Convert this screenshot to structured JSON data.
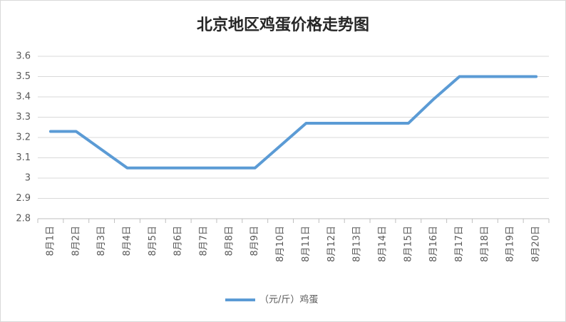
{
  "chart_data": {
    "type": "line",
    "title": "北京地区鸡蛋价格走势图",
    "categories": [
      "8月1日",
      "8月2日",
      "8月3日",
      "8月4日",
      "8月5日",
      "8月6日",
      "8月7日",
      "8月8日",
      "8月9日",
      "8月10日",
      "8月11日",
      "8月12日",
      "8月13日",
      "8月14日",
      "8月15日",
      "8月16日",
      "8月17日",
      "8月18日",
      "8月19日",
      "8月20日"
    ],
    "series": [
      {
        "name": "（元/斤）鸡蛋",
        "color": "#5b9bd5",
        "values": [
          3.23,
          3.23,
          3.14,
          3.05,
          3.05,
          3.05,
          3.05,
          3.05,
          3.05,
          3.16,
          3.27,
          3.27,
          3.27,
          3.27,
          3.27,
          3.39,
          3.5,
          3.5,
          3.5,
          3.5
        ]
      }
    ],
    "ylim": [
      2.8,
      3.6
    ],
    "yticks": [
      2.8,
      2.9,
      3,
      3.1,
      3.2,
      3.3,
      3.4,
      3.5,
      3.6
    ],
    "grid": true,
    "legend": "bottom"
  }
}
